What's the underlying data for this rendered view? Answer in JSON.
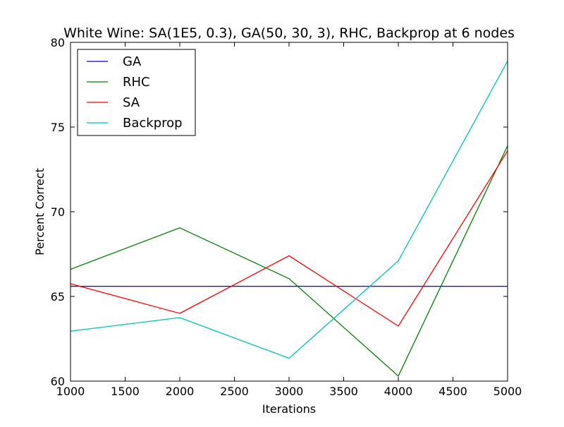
{
  "chart_data": {
    "type": "line",
    "title": "White Wine: SA(1E5, 0.3), GA(50, 30, 3), RHC, Backprop at 6 nodes",
    "xlabel": "Iterations",
    "ylabel": "Percent Correct",
    "xlim": [
      1000,
      5000
    ],
    "ylim": [
      60,
      80
    ],
    "xticks": [
      1000,
      1500,
      2000,
      2500,
      3000,
      3500,
      4000,
      4500,
      5000
    ],
    "yticks": [
      60,
      65,
      70,
      75,
      80
    ],
    "grid": false,
    "legend_position": "top-left",
    "x": [
      1000,
      2000,
      3000,
      4000,
      5000
    ],
    "series": [
      {
        "name": "GA",
        "color": "#0000ff",
        "values": [
          65.6,
          65.6,
          65.6,
          65.6,
          65.6
        ]
      },
      {
        "name": "RHC",
        "color": "#008000",
        "values": [
          66.6,
          69.05,
          66.05,
          60.3,
          73.9
        ]
      },
      {
        "name": "SA",
        "color": "#ff0000",
        "values": [
          65.75,
          64.0,
          67.4,
          63.25,
          73.6
        ]
      },
      {
        "name": "Backprop",
        "color": "#00bfbf",
        "values": [
          62.95,
          63.75,
          61.35,
          67.1,
          78.9
        ]
      }
    ]
  }
}
